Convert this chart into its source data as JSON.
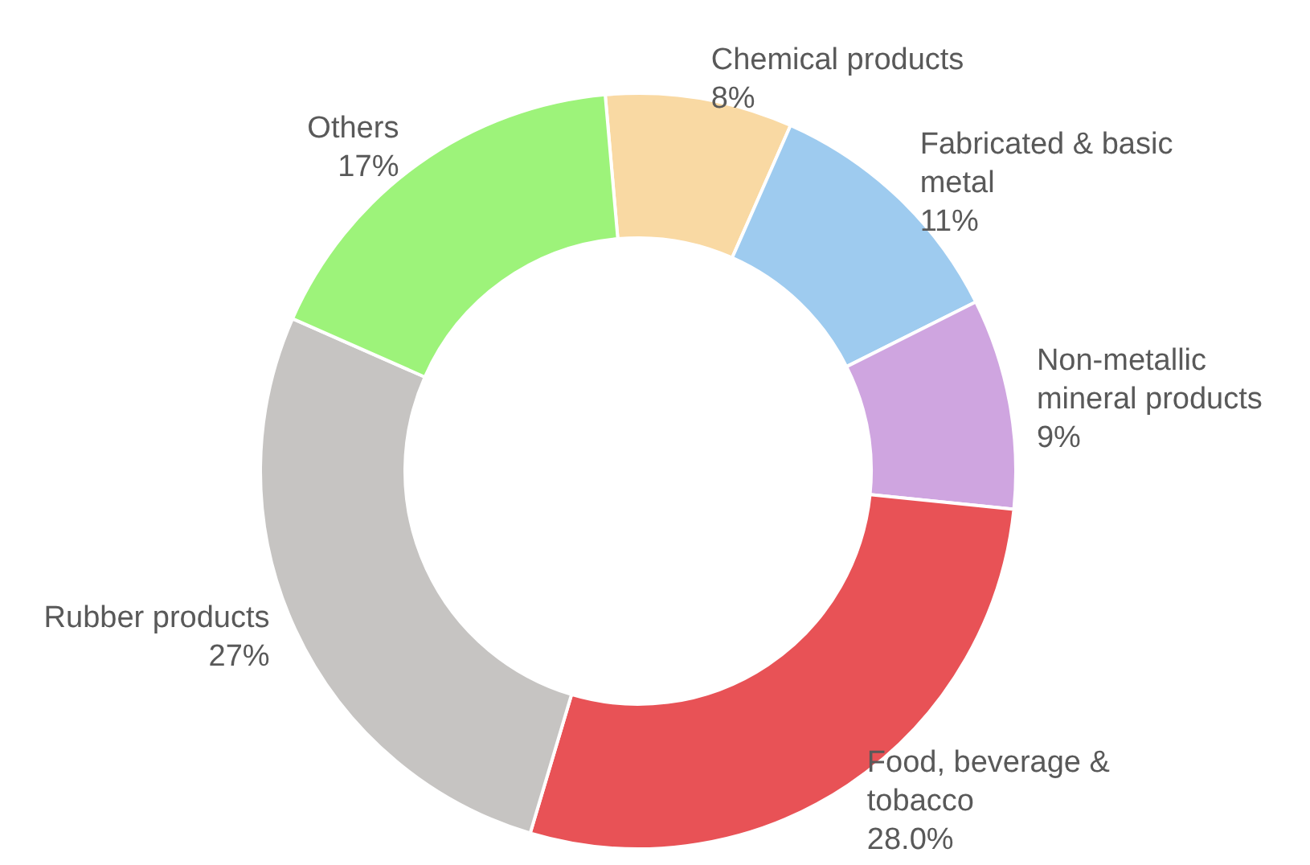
{
  "chart_data": {
    "type": "donut",
    "categories": [
      "Chemical products",
      "Fabricated & basic metal",
      "Non-metallic mineral products",
      "Food, beverage & tobacco",
      "Rubber products",
      "Others"
    ],
    "values": [
      8,
      11,
      9,
      28.0,
      27,
      17
    ],
    "value_labels": [
      "8%",
      "11%",
      "9%",
      "28.0%",
      "27%",
      "17%"
    ],
    "colors": [
      "#f9d9a3",
      "#9ecbef",
      "#cfa5e0",
      "#e85256",
      "#c6c4c2",
      "#9df37a"
    ],
    "legend": false
  }
}
